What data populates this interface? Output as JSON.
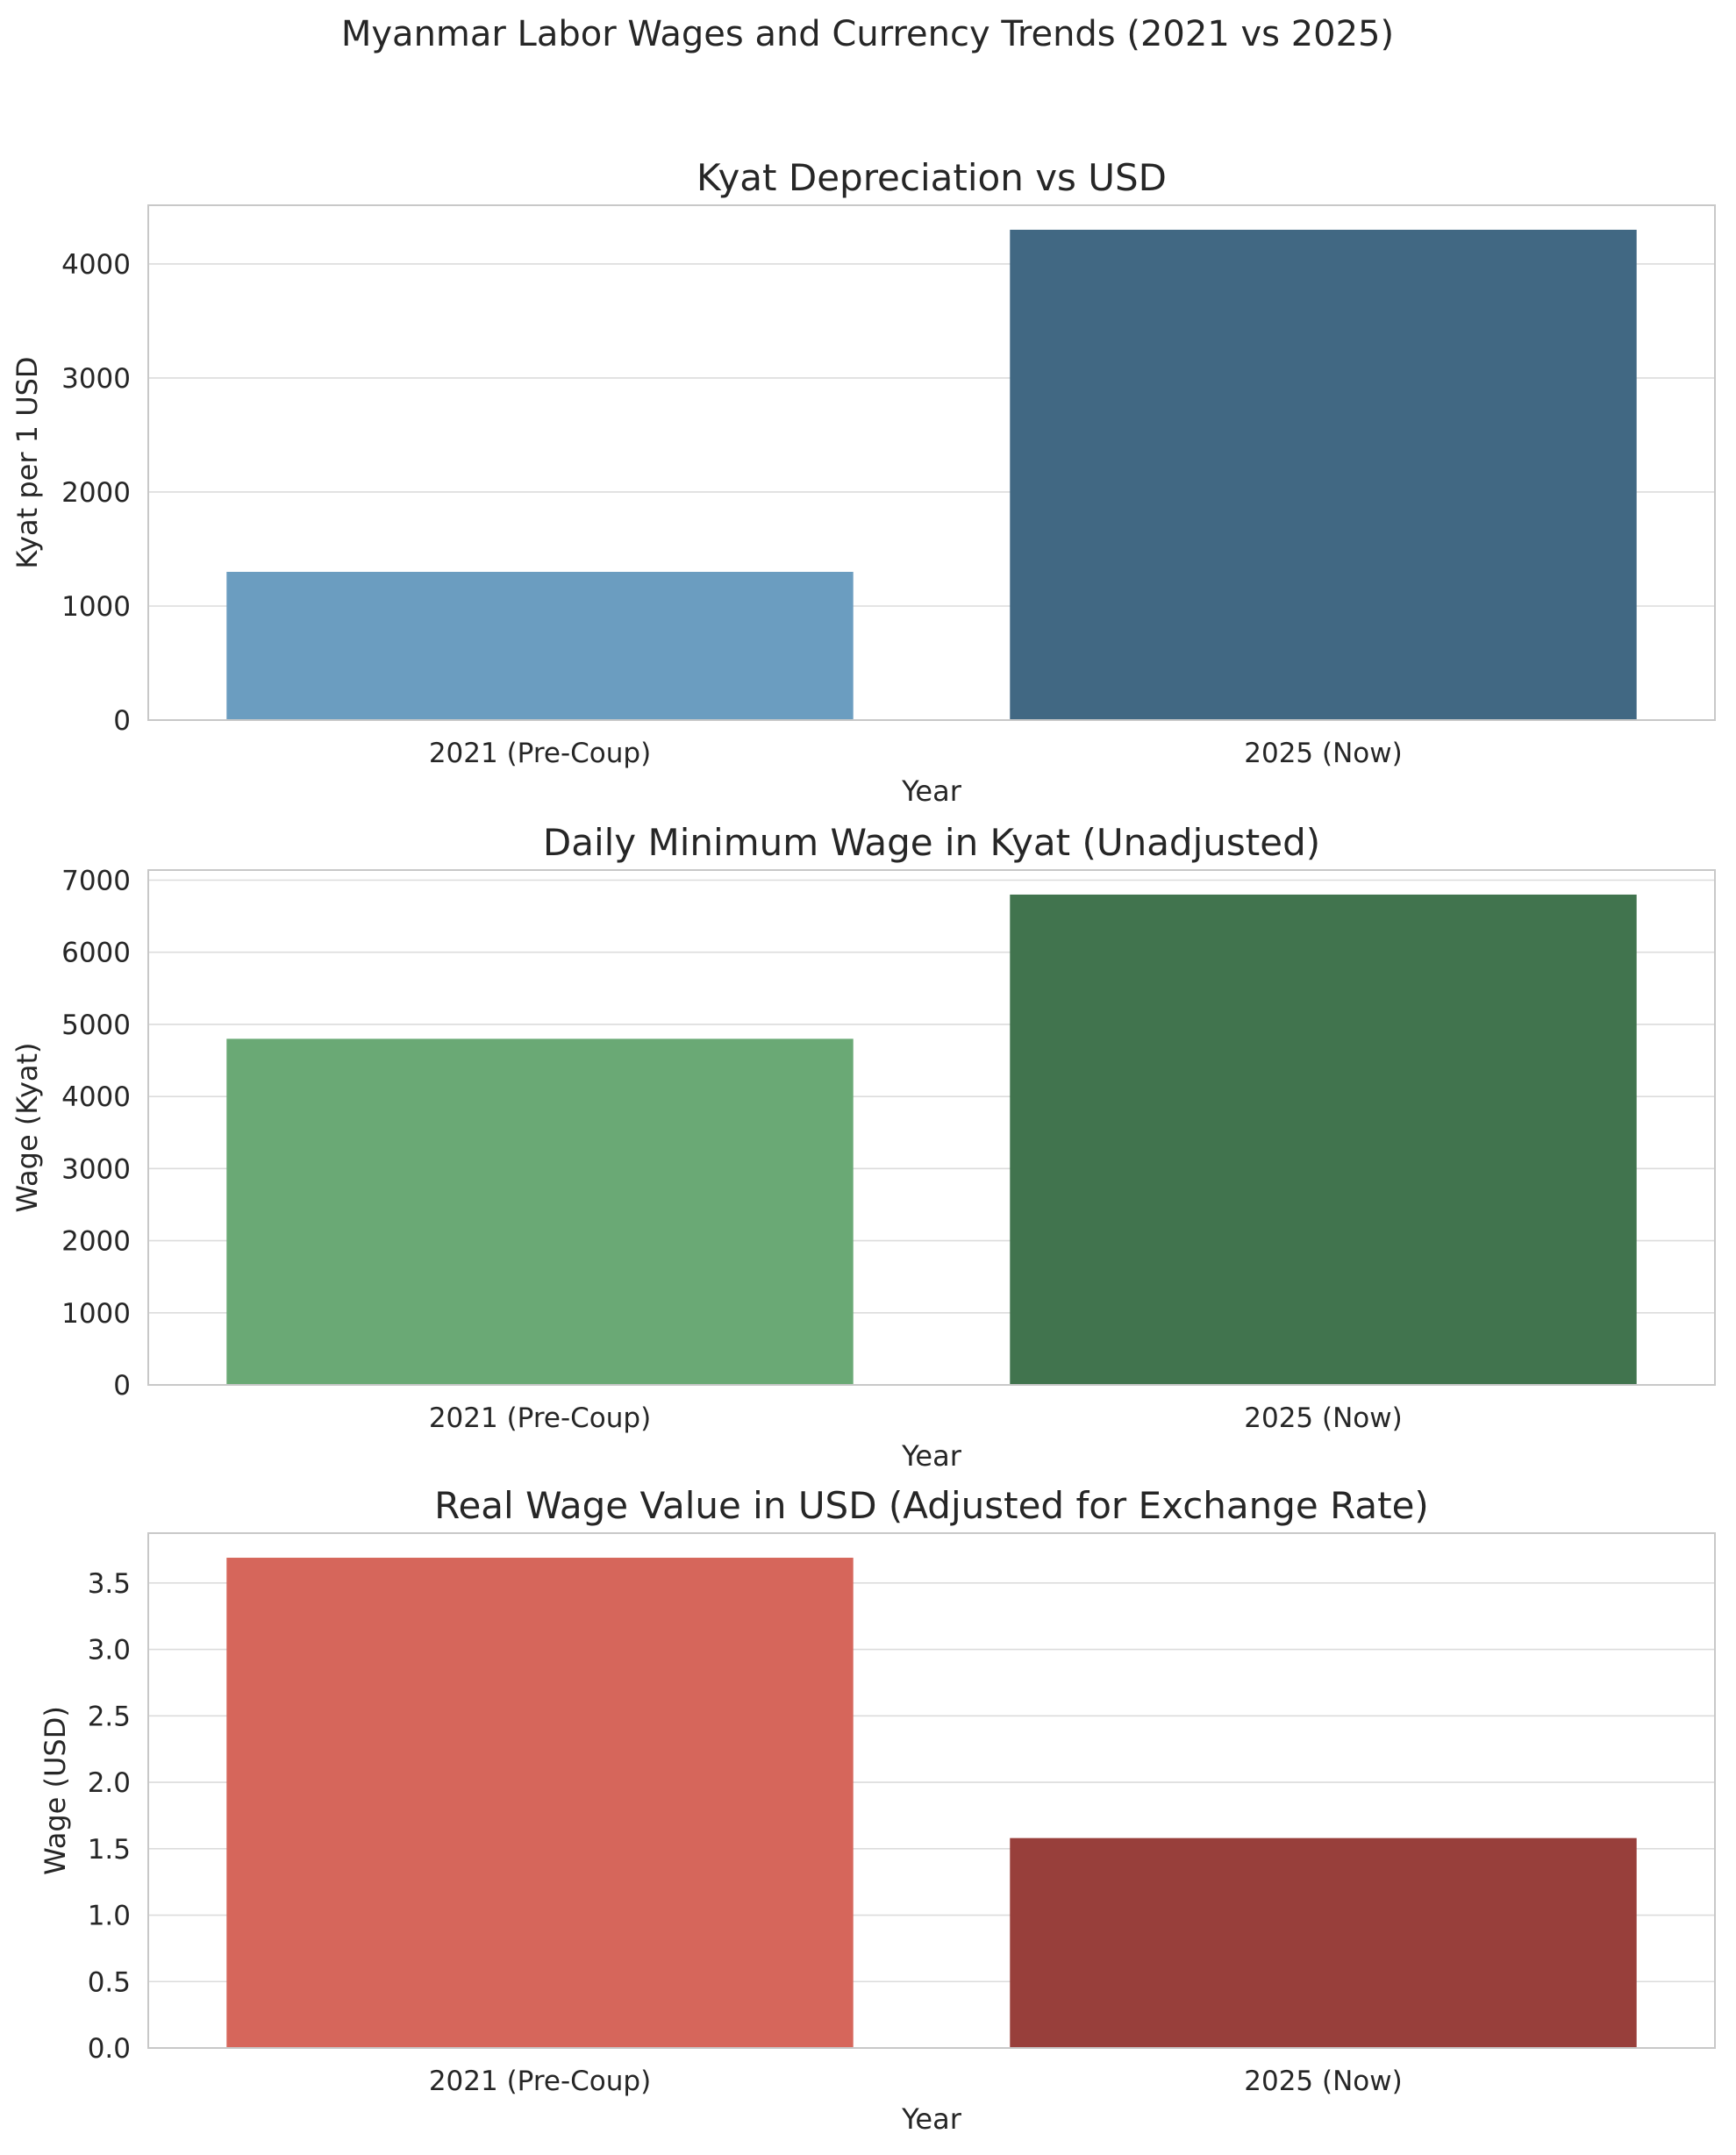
{
  "figure": {
    "title": "Myanmar Labor Wages and Currency Trends (2021 vs 2025)"
  },
  "chart_data": [
    {
      "type": "bar",
      "title": "Kyat Depreciation vs USD",
      "xlabel": "Year",
      "ylabel": "Kyat per 1 USD",
      "categories": [
        "2021 (Pre-Coup)",
        "2025 (Now)"
      ],
      "values": [
        1300,
        4300
      ],
      "colors": [
        "#6b9dc0",
        "#416883"
      ],
      "ylim": [
        0,
        4515
      ],
      "yticks": [
        0,
        1000,
        2000,
        3000,
        4000
      ],
      "ytick_labels": [
        "0",
        "1000",
        "2000",
        "3000",
        "4000"
      ],
      "grid": true
    },
    {
      "type": "bar",
      "title": "Daily Minimum Wage in Kyat (Unadjusted)",
      "xlabel": "Year",
      "ylabel": "Wage (Kyat)",
      "categories": [
        "2021 (Pre-Coup)",
        "2025 (Now)"
      ],
      "values": [
        4800,
        6800
      ],
      "colors": [
        "#6aa975",
        "#41744e"
      ],
      "ylim": [
        0,
        7140
      ],
      "yticks": [
        0,
        1000,
        2000,
        3000,
        4000,
        5000,
        6000,
        7000
      ],
      "ytick_labels": [
        "0",
        "1000",
        "2000",
        "3000",
        "4000",
        "5000",
        "6000",
        "7000"
      ],
      "grid": true
    },
    {
      "type": "bar",
      "title": "Real Wage Value in USD (Adjusted for Exchange Rate)",
      "xlabel": "Year",
      "ylabel": "Wage (USD)",
      "categories": [
        "2021 (Pre-Coup)",
        "2025 (Now)"
      ],
      "values": [
        3.69,
        1.58
      ],
      "colors": [
        "#d6665b",
        "#983f3b"
      ],
      "ylim": [
        0,
        3.875
      ],
      "yticks": [
        0,
        0.5,
        1.0,
        1.5,
        2.0,
        2.5,
        3.0,
        3.5
      ],
      "ytick_labels": [
        "0.0",
        "0.5",
        "1.0",
        "1.5",
        "2.0",
        "2.5",
        "3.0",
        "3.5"
      ],
      "grid": true
    }
  ]
}
